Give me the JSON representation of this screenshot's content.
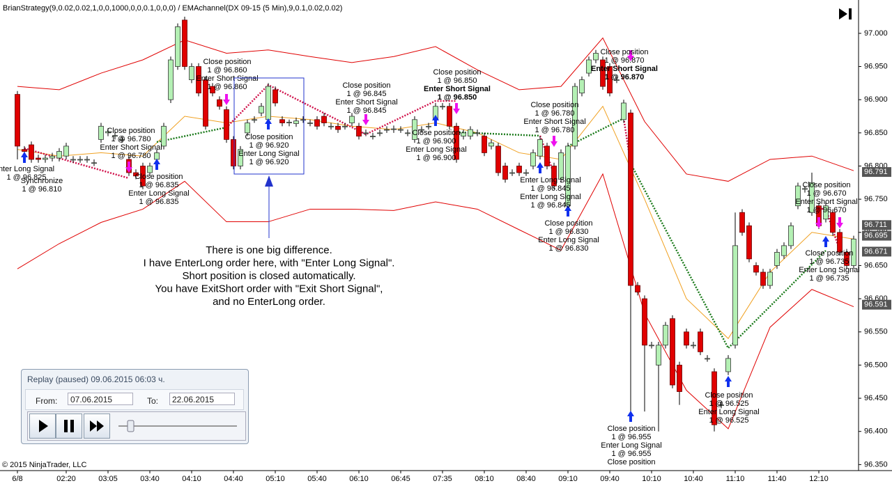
{
  "chart_data": {
    "type": "candlestick",
    "title": "BrianStrategy(9,0.02,0.02,1,0,0,1000,0,0,0.1,0,0,0) / EMAchannel(DX 09-15 (5 Min),9,0.1,0.02,0.02)",
    "categories": [
      "6/8",
      null,
      null,
      null,
      null,
      null,
      null,
      "02:20",
      null,
      null,
      null,
      null,
      null,
      "03:05",
      null,
      null,
      null,
      null,
      null,
      "03:40",
      null,
      null,
      null,
      null,
      null,
      "04:10",
      null,
      null,
      null,
      null,
      null,
      "04:40",
      null,
      null,
      null,
      null,
      null,
      "05:10",
      null,
      null,
      null,
      null,
      null,
      "05:40",
      null,
      null,
      null,
      null,
      null,
      "06:10",
      null,
      null,
      null,
      null,
      null,
      "06:45",
      null,
      null,
      null,
      null,
      null,
      "07:35",
      null,
      null,
      null,
      null,
      null,
      "08:10",
      null,
      null,
      null,
      null,
      null,
      "08:40",
      null,
      null,
      null,
      null,
      null,
      "09:10",
      null,
      null,
      null,
      null,
      null,
      "09:40",
      null,
      null,
      null,
      null,
      null,
      "10:10",
      null,
      null,
      null,
      null,
      null,
      "10:40",
      null,
      null,
      null,
      null,
      null,
      "11:10",
      null,
      null,
      null,
      null,
      null,
      "11:40",
      null,
      null,
      null,
      null,
      null,
      "12:10",
      null,
      null,
      null,
      null,
      null
    ],
    "open": [
      96.908,
      96.825,
      96.832,
      96.812,
      96.81,
      96.812,
      96.812,
      96.815,
      96.81,
      96.81,
      96.81,
      96.805,
      96.84,
      96.85,
      96.845,
      96.84,
      96.81,
      96.79,
      96.8,
      96.79,
      96.81,
      96.83,
      96.9,
      96.95,
      97.02,
      96.93,
      96.95,
      96.93,
      96.92,
      96.9,
      96.885,
      96.84,
      96.8,
      96.85,
      96.87,
      96.88,
      96.87,
      96.915,
      96.87,
      96.865,
      96.864,
      96.87,
      96.865,
      96.87,
      96.875,
      96.86,
      96.86,
      96.86,
      96.865,
      96.86,
      96.85,
      96.845,
      96.85,
      96.855,
      96.855,
      96.855,
      96.85,
      96.84,
      96.855,
      96.86,
      96.87,
      96.89,
      96.89,
      96.86,
      96.845,
      96.845,
      96.85,
      96.845,
      96.83,
      96.83,
      96.8,
      96.79,
      96.8,
      96.79,
      96.8,
      96.815,
      96.83,
      96.8,
      96.78,
      96.74,
      96.83,
      96.91,
      96.94,
      96.96,
      96.96,
      96.95,
      96.93,
      96.87,
      96.88,
      96.62,
      96.6,
      96.53,
      96.5,
      96.53,
      96.57,
      96.5,
      96.55,
      96.53,
      96.55,
      96.51,
      96.49,
      96.44,
      96.49,
      96.53,
      96.73,
      96.71,
      96.65,
      96.64,
      96.62,
      96.65,
      96.665,
      96.68,
      96.74,
      96.765,
      96.73,
      96.74,
      96.72,
      96.73,
      96.7,
      96.67,
      96.65
    ],
    "high": [
      96.913,
      96.83,
      96.837,
      96.817,
      96.817,
      96.82,
      96.827,
      96.835,
      96.815,
      96.815,
      96.815,
      96.81,
      96.865,
      96.857,
      96.851,
      96.845,
      96.815,
      96.795,
      96.805,
      96.805,
      96.825,
      96.865,
      96.965,
      97.015,
      97.025,
      96.955,
      96.955,
      96.935,
      96.925,
      96.905,
      96.89,
      96.845,
      96.83,
      96.87,
      96.875,
      96.895,
      96.925,
      96.92,
      96.875,
      96.87,
      96.873,
      96.875,
      96.87,
      96.875,
      96.88,
      96.865,
      96.865,
      96.865,
      96.88,
      96.865,
      96.855,
      96.85,
      96.855,
      96.86,
      96.861,
      96.86,
      96.855,
      96.875,
      96.86,
      96.865,
      96.895,
      96.895,
      96.895,
      96.865,
      96.855,
      96.86,
      96.855,
      96.85,
      96.84,
      96.835,
      96.805,
      96.795,
      96.805,
      96.795,
      96.825,
      96.845,
      96.835,
      96.805,
      96.825,
      96.835,
      96.925,
      96.935,
      96.965,
      96.975,
      96.965,
      96.955,
      96.935,
      96.9,
      96.885,
      96.625,
      96.605,
      96.535,
      96.535,
      96.565,
      96.575,
      96.505,
      96.555,
      96.535,
      96.555,
      96.515,
      96.495,
      96.445,
      96.515,
      96.73,
      96.735,
      96.715,
      96.655,
      96.645,
      96.645,
      96.675,
      96.685,
      96.715,
      96.775,
      96.77,
      96.79,
      96.745,
      96.745,
      96.735,
      96.705,
      96.675,
      96.695
    ],
    "low": [
      96.81,
      96.817,
      96.805,
      96.805,
      96.805,
      96.807,
      96.807,
      96.81,
      96.805,
      96.805,
      96.805,
      96.8,
      96.835,
      96.845,
      96.84,
      96.835,
      96.785,
      96.78,
      96.765,
      96.785,
      96.805,
      96.825,
      96.895,
      96.945,
      96.945,
      96.925,
      96.905,
      96.855,
      96.905,
      96.885,
      96.835,
      96.795,
      96.795,
      96.845,
      96.865,
      96.875,
      96.865,
      96.89,
      96.86,
      96.86,
      96.859,
      96.865,
      96.86,
      96.855,
      96.86,
      96.855,
      96.85,
      96.855,
      96.86,
      96.84,
      96.845,
      96.84,
      96.845,
      96.85,
      96.85,
      96.85,
      96.845,
      96.835,
      96.85,
      96.855,
      96.865,
      96.885,
      96.855,
      96.805,
      96.84,
      96.84,
      96.845,
      96.815,
      96.825,
      96.785,
      96.775,
      96.785,
      96.785,
      96.785,
      96.795,
      96.81,
      96.795,
      96.765,
      96.775,
      96.735,
      96.825,
      96.905,
      96.935,
      96.955,
      96.915,
      96.905,
      96.925,
      96.865,
      96.43,
      96.605,
      96.43,
      96.525,
      96.4,
      96.525,
      96.465,
      96.44,
      96.525,
      96.525,
      96.515,
      96.505,
      96.4,
      96.435,
      96.485,
      96.525,
      96.695,
      96.655,
      96.635,
      96.615,
      96.615,
      96.645,
      96.66,
      96.675,
      96.735,
      96.76,
      96.725,
      96.705,
      96.715,
      96.695,
      96.665,
      96.645,
      96.645
    ],
    "close": [
      96.83,
      96.822,
      96.81,
      96.81,
      96.812,
      96.815,
      96.822,
      96.83,
      96.81,
      96.81,
      96.81,
      96.805,
      96.86,
      96.852,
      96.846,
      96.84,
      96.79,
      96.785,
      96.77,
      96.8,
      96.82,
      96.86,
      96.96,
      97.01,
      96.95,
      96.95,
      96.91,
      96.86,
      96.91,
      96.89,
      96.84,
      96.8,
      96.825,
      96.865,
      96.87,
      96.89,
      96.92,
      96.895,
      96.865,
      96.866,
      96.868,
      96.87,
      96.865,
      96.86,
      96.865,
      96.86,
      96.855,
      96.86,
      96.875,
      96.845,
      96.85,
      96.845,
      96.85,
      96.855,
      96.856,
      96.855,
      96.85,
      96.87,
      96.855,
      96.86,
      96.89,
      96.89,
      96.86,
      96.81,
      96.85,
      96.855,
      96.85,
      96.82,
      96.835,
      96.79,
      96.78,
      96.79,
      96.79,
      96.79,
      96.82,
      96.84,
      96.8,
      96.77,
      96.82,
      96.83,
      96.92,
      96.93,
      96.96,
      96.97,
      96.92,
      96.91,
      96.93,
      96.895,
      96.62,
      96.61,
      96.53,
      96.53,
      96.53,
      96.56,
      96.47,
      96.46,
      96.53,
      96.53,
      96.52,
      96.51,
      96.41,
      96.44,
      96.51,
      96.68,
      96.7,
      96.66,
      96.64,
      96.62,
      96.64,
      96.67,
      96.68,
      96.71,
      96.77,
      96.766,
      96.775,
      96.71,
      96.74,
      96.7,
      96.67,
      96.65,
      96.69
    ],
    "up_color": "#b4f0b4",
    "down_color": "#e00000",
    "ylim": [
      96.342,
      97.045
    ],
    "yticks": [
      {
        "value": 97,
        "label": "97.000"
      },
      {
        "value": 96.95,
        "label": "96.950"
      },
      {
        "value": 96.9,
        "label": "96.900"
      },
      {
        "value": 96.85,
        "label": "96.850"
      },
      {
        "value": 96.8,
        "label": "96.800"
      },
      {
        "value": 96.75,
        "label": "96.750"
      },
      {
        "value": 96.7,
        "label": "96.700"
      },
      {
        "value": 96.65,
        "label": "96.650"
      },
      {
        "value": 96.6,
        "label": "96.600"
      },
      {
        "value": 96.55,
        "label": "96.550"
      },
      {
        "value": 96.5,
        "label": "96.500"
      },
      {
        "value": 96.45,
        "label": "96.450"
      },
      {
        "value": 96.4,
        "label": "96.400"
      },
      {
        "value": 96.35,
        "label": "96.350"
      }
    ],
    "overlays": [
      {
        "color": "#e00000",
        "x": [
          0,
          6,
          12,
          18,
          24,
          30,
          36,
          42,
          48,
          54,
          60,
          66,
          72,
          78,
          84,
          90,
          96,
          102,
          108,
          114,
          120
        ],
        "values": [
          96.92,
          96.915,
          96.94,
          96.96,
          96.99,
          96.97,
          96.975,
          96.965,
          96.956,
          96.965,
          96.98,
          96.945,
          96.915,
          96.92,
          96.993,
          96.867,
          96.788,
          96.777,
          96.81,
          96.815,
          96.793
        ]
      },
      {
        "color": "#e00000",
        "x": [
          0,
          6,
          12,
          18,
          24,
          30,
          36,
          42,
          48,
          54,
          60,
          66,
          72,
          78,
          84,
          90,
          96,
          102,
          108,
          114,
          120
        ],
        "values": [
          96.645,
          96.683,
          96.715,
          96.735,
          96.777,
          96.716,
          96.716,
          96.735,
          96.735,
          96.733,
          96.746,
          96.735,
          96.704,
          96.673,
          96.788,
          96.578,
          96.462,
          96.404,
          96.557,
          96.614,
          96.588
        ]
      },
      {
        "color": "#f0a020",
        "x": [
          0,
          6,
          12,
          18,
          24,
          30,
          36,
          42,
          48,
          54,
          60,
          66,
          72,
          78,
          84,
          90,
          96,
          102,
          108,
          114,
          120
        ],
        "values": [
          96.825,
          96.815,
          96.82,
          96.815,
          96.875,
          96.865,
          96.875,
          96.87,
          96.86,
          96.855,
          96.865,
          96.85,
          96.82,
          96.81,
          96.89,
          96.75,
          96.6,
          96.54,
          96.64,
          96.7,
          96.69
        ]
      }
    ],
    "price_markers": [
      96.791,
      96.711,
      96.695,
      96.671,
      96.591
    ]
  },
  "annotations": [
    [
      "nter Long Signal",
      "1 @ 96.825"
    ],
    [
      "Synchronize",
      "1 @ 96.810"
    ],
    [
      "Close position",
      "1 @ 96.780",
      "Enter Short Signal",
      "1 @ 96.780"
    ],
    [
      "Close position",
      "1 @ 96.835",
      "Enter Long Signal",
      "1 @ 96.835"
    ],
    [
      "Close position",
      "1 @ 96.860",
      "Enter Short Signal",
      "1 @ 96.860"
    ],
    [
      "Close position",
      "1 @ 96.920",
      "Enter Long Signal",
      "1 @ 96.920"
    ],
    [
      "Close position",
      "1 @ 96.845",
      "Enter Short Signal",
      "1 @ 96.845"
    ],
    [
      "Close position",
      "1 @ 96.850",
      "Enter Short Signal",
      "1 @ 96.850"
    ],
    [
      "Close position",
      "1 @ 96.900",
      "Enter Long Signal",
      "1 @ 96.900"
    ],
    [
      "Close position",
      "1 @ 96.780",
      "Enter Short Signal",
      "1 @ 96.780"
    ],
    [
      "Enter Long Signal",
      "1 @ 96.845",
      "Enter Long Signal",
      "1 @ 96.845"
    ],
    [
      "Close position",
      "1 @ 96.830",
      "Enter Long Signal",
      "1 @ 96.830"
    ],
    [
      "Close position",
      "1 @ 96.870",
      "Enter Short Signal",
      "1 @ 96.870"
    ],
    [
      "Close position",
      "1 @ 96.955",
      "Enter Long Signal",
      "1 @ 96.955",
      "Close position"
    ],
    [
      "Close position",
      "1 @ 96.525",
      "Enter Long Signal",
      "1 @ 96.525"
    ],
    [
      "Close position",
      "1 @ 96.670",
      "Enter Short Signal",
      "1 @ 96.670"
    ],
    [
      "Close position",
      "1 @ 96.735",
      "Enter Long Signal",
      "1 @ 96.735"
    ]
  ],
  "comment": [
    "There is one big difference.",
    "I have EnterLong order here, with \"Enter Long Signal\".",
    "Short position is closed automatically.",
    "You have ExitShort order with \"Exit Short Signal\",",
    "and no EnterLong order."
  ],
  "copyright": "© 2015 NinjaTrader, LLC",
  "replay": {
    "status": "Replay (paused) 09.06.2015 06:03 ч.",
    "from_label": "From:",
    "from": "07.06.2015",
    "to_label": "To:",
    "to": "22.06.2015"
  }
}
